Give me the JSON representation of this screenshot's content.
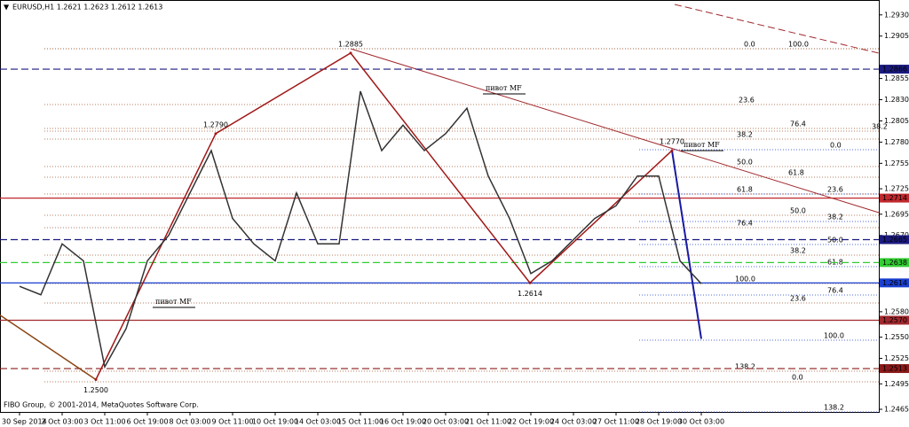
{
  "chart_data": {
    "type": "line",
    "title": "EURUSD,H1 1.2621 1.2623 1.2612 1.2613",
    "footer": "FIBO Group, © 2001-2014, MetaQuotes Software Corp.",
    "categories": [
      "30 Sep 2014",
      null,
      "2 Oct 03:00",
      null,
      "3 Oct 11:00",
      null,
      "6 Oct 19:00",
      null,
      "8 Oct 03:00",
      null,
      "9 Oct 11:00",
      null,
      "10 Oct 19:00",
      null,
      "14 Oct 03:00",
      null,
      "15 Oct 11:00",
      null,
      "16 Oct 19:00",
      null,
      "20 Oct 03:00",
      null,
      "21 Oct 11:00",
      null,
      "22 Oct 19:00",
      null,
      "24 Oct 03:00",
      null,
      "27 Oct 11:00",
      null,
      "28 Oct 19:00",
      null,
      "30 Oct 03:00"
    ],
    "series": [
      {
        "name": "EURUSD",
        "color": "#333333",
        "values": [
          1.261,
          1.26,
          1.266,
          1.264,
          1.2515,
          1.256,
          1.264,
          1.267,
          1.272,
          1.277,
          1.269,
          1.266,
          1.264,
          1.272,
          1.266,
          1.266,
          1.284,
          1.277,
          1.28,
          1.277,
          1.279,
          1.282,
          1.274,
          1.269,
          1.2625,
          1.264,
          1.2665,
          1.269,
          1.2705,
          1.274,
          1.274,
          1.264,
          1.2613
        ]
      }
    ],
    "ylim": [
      1.2465,
      1.2935
    ],
    "yticks": [
      {
        "value": 1.293,
        "label": "1.2930"
      },
      1.2905,
      1.2855,
      {
        "value": 1.283,
        "label": "1.2830"
      },
      1.2805,
      {
        "value": 1.278,
        "label": "1.2780"
      },
      1.2755,
      1.2725,
      1.2695,
      {
        "value": 1.267,
        "label": "1.2670"
      },
      {
        "value": 1.258,
        "label": "1.2580"
      },
      {
        "value": 1.255,
        "label": "1.2550"
      },
      1.2525,
      1.2495,
      1.2465
    ],
    "levels": [
      {
        "value": 1.2866,
        "color": "#1a1a80",
        "style": "dashed"
      },
      {
        "value": 1.2714,
        "color": "#c0282d",
        "style": "solid"
      },
      {
        "value": 1.2665,
        "color": "#1a1a80",
        "style": "dashed"
      },
      {
        "value": 1.2638,
        "color": "#33cc33",
        "style": "dashed"
      },
      {
        "value": 1.2614,
        "color": "#1a3fd0",
        "style": "solid"
      },
      {
        "value": {
          "value": 1.257,
          "label": "1.2570"
        },
        "color": "#a0282d",
        "style": "solid"
      },
      {
        "value": 1.2513,
        "color": "#8b1a1a",
        "style": "dashed"
      }
    ],
    "pivots": [
      {
        "value": {
          "value": 1.25,
          "label": "1.2500"
        }
      },
      {
        "value": {
          "value": 1.279,
          "label": "1.2790"
        }
      },
      {
        "value": 1.2885
      },
      {
        "value": 1.2614
      },
      {
        "value": {
          "value": 1.277,
          "label": "1.2770"
        }
      }
    ],
    "pivot_note": "пивот MF",
    "fib_labels": [
      "0.0",
      "100.0",
      "23.6",
      "76.4",
      "38.2",
      "38.2",
      "0.0",
      "50.0",
      "61.8",
      "61.8",
      "23.6",
      "50.0",
      "38.2",
      "76.4",
      "50.0",
      "38.2",
      "61.8",
      "100.0",
      "76.4",
      "23.6",
      "100.0",
      "138.2",
      "0.0",
      "138.2"
    ],
    "grid": false
  }
}
